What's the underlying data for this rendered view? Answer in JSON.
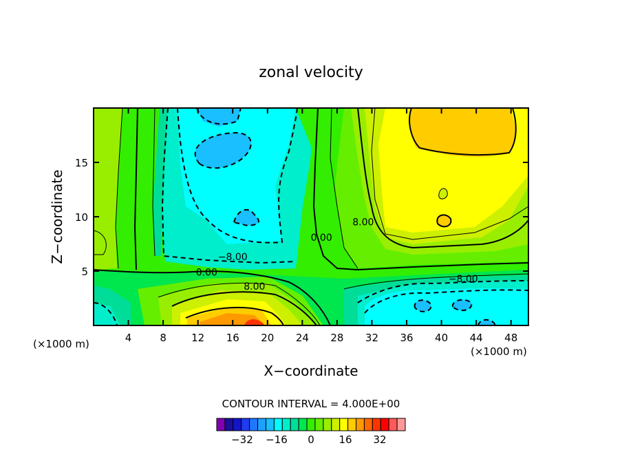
{
  "chart_data": {
    "type": "heatmap",
    "subtype": "filled-contour",
    "title": "zonal velocity",
    "xlabel": "X−coordinate",
    "ylabel": "Z−coordinate",
    "x_unit_left": "(×1000 m)",
    "x_unit_right": "(×1000 m)",
    "xlim": [
      0,
      50
    ],
    "ylim": [
      0,
      20
    ],
    "x_ticks": [
      4,
      8,
      12,
      16,
      20,
      24,
      28,
      32,
      36,
      40,
      44,
      48
    ],
    "y_ticks": [
      5,
      10,
      15
    ],
    "x_tick_labels": [
      "4",
      "8",
      "12",
      "16",
      "20",
      "24",
      "28",
      "32",
      "36",
      "40",
      "44",
      "48"
    ],
    "y_tick_labels": [
      "5",
      "10",
      "15"
    ],
    "contour_interval_text": "CONTOUR INTERVAL =  4.000E+00",
    "colorbar": {
      "levels": [
        -40,
        -36,
        -32,
        -28,
        -24,
        -20,
        -16,
        -12,
        -8,
        -4,
        0,
        4,
        8,
        12,
        16,
        20,
        24,
        28,
        32,
        36,
        40
      ],
      "colors": [
        "#8000b0",
        "#1a0f99",
        "#1414c8",
        "#1e3cf0",
        "#1e78ff",
        "#1ea0ff",
        "#19bfff",
        "#00ffff",
        "#00eecc",
        "#00dd99",
        "#00e64d",
        "#33ee00",
        "#66ee00",
        "#99ee00",
        "#ccf000",
        "#ffff00",
        "#ffcc00",
        "#ff9900",
        "#ff6600",
        "#ff3300",
        "#ff0000",
        "#ff5a5a",
        "#ff9999"
      ],
      "tick_values": [
        -32,
        -16,
        0,
        16,
        32
      ],
      "tick_labels": [
        "−32",
        "−16",
        "0",
        "16",
        "32"
      ]
    },
    "contour_labels": [
      {
        "text": "8.00",
        "x": 31,
        "y": 9.2
      },
      {
        "text": "0.00",
        "x": 26.2,
        "y": 7.8
      },
      {
        "text": "−8.00",
        "x": 16,
        "y": 6.0
      },
      {
        "text": "0.00",
        "x": 13,
        "y": 4.6
      },
      {
        "text": "8.00",
        "x": 18.5,
        "y": 3.3
      },
      {
        "text": "−8.00",
        "x": 42.5,
        "y": 4.0
      }
    ]
  }
}
